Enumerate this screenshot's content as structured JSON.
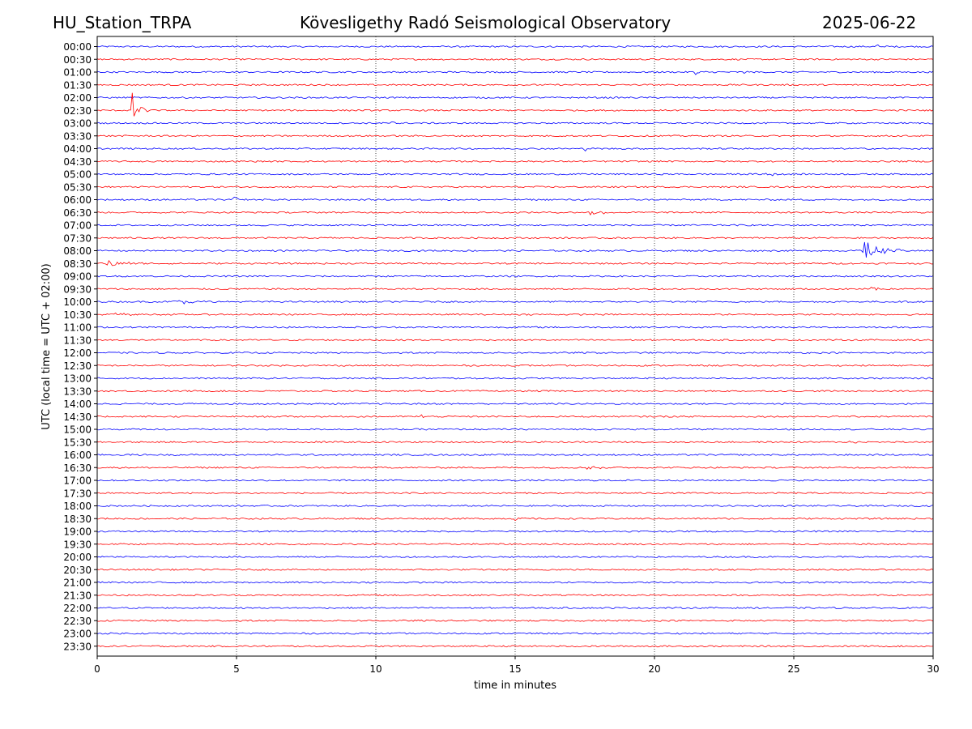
{
  "header": {
    "station": "HU_Station_TRPA",
    "observatory": "Kövesligethy Radó Seismological Observatory",
    "date": "2025-06-22"
  },
  "chart_data": {
    "type": "line",
    "title": "Kövesligethy Radó Seismological Observatory",
    "xlabel": "time in minutes",
    "ylabel": "UTC (local time = UTC + 02:00)",
    "xlim": [
      0,
      30
    ],
    "xticks": [
      0,
      5,
      10,
      15,
      20,
      25,
      30
    ],
    "grid": "vertical dotted lines at x ticks",
    "row_labels": [
      "00:00",
      "00:30",
      "01:00",
      "01:30",
      "02:00",
      "02:30",
      "03:00",
      "03:30",
      "04:00",
      "04:30",
      "05:00",
      "05:30",
      "06:00",
      "06:30",
      "07:00",
      "07:30",
      "08:00",
      "08:30",
      "09:00",
      "09:30",
      "10:00",
      "10:30",
      "11:00",
      "11:30",
      "12:00",
      "12:30",
      "13:00",
      "13:30",
      "14:00",
      "14:30",
      "15:00",
      "15:30",
      "16:00",
      "16:30",
      "17:00",
      "17:30",
      "18:00",
      "18:30",
      "19:00",
      "19:30",
      "20:00",
      "20:30",
      "21:00",
      "21:30",
      "22:00",
      "22:30",
      "23:00",
      "23:30"
    ],
    "trace_colors": [
      "#0000ff",
      "#ff0000"
    ],
    "noise_amplitude": 0.06,
    "events": [
      {
        "row": "00:00",
        "x": 28.0,
        "amplitude": 0.15,
        "duration": 0.4
      },
      {
        "row": "01:00",
        "x": 21.5,
        "amplitude": 0.2,
        "duration": 0.4
      },
      {
        "row": "01:00",
        "x": 23.2,
        "amplitude": 0.15,
        "duration": 0.4
      },
      {
        "row": "02:30",
        "x": 1.25,
        "amplitude": 1.5,
        "duration": 0.6
      },
      {
        "row": "03:00",
        "x": 10.5,
        "amplitude": 0.15,
        "duration": 0.5
      },
      {
        "row": "04:00",
        "x": 17.5,
        "amplitude": 0.15,
        "duration": 0.3
      },
      {
        "row": "05:00",
        "x": 24.0,
        "amplitude": 0.2,
        "duration": 0.8
      },
      {
        "row": "06:00",
        "x": 4.8,
        "amplitude": 0.35,
        "duration": 0.6
      },
      {
        "row": "06:30",
        "x": 17.7,
        "amplitude": 0.3,
        "duration": 0.8
      },
      {
        "row": "08:00",
        "x": 27.5,
        "amplitude": 0.8,
        "duration": 1.5
      },
      {
        "row": "08:30",
        "x": 0.4,
        "amplitude": 0.25,
        "duration": 1.5
      },
      {
        "row": "09:30",
        "x": 27.8,
        "amplitude": 0.2,
        "duration": 0.5
      },
      {
        "row": "10:00",
        "x": 2.8,
        "amplitude": 0.2,
        "duration": 1.5
      },
      {
        "row": "10:30",
        "x": 0.6,
        "amplitude": 0.2,
        "duration": 1.0
      },
      {
        "row": "14:30",
        "x": 11.6,
        "amplitude": 0.2,
        "duration": 0.3
      },
      {
        "row": "15:30",
        "x": 7.9,
        "amplitude": 0.2,
        "duration": 0.4
      },
      {
        "row": "15:30",
        "x": 27.0,
        "amplitude": 0.2,
        "duration": 0.6
      },
      {
        "row": "16:30",
        "x": 17.6,
        "amplitude": 0.35,
        "duration": 0.7
      },
      {
        "row": "18:30",
        "x": 15.0,
        "amplitude": 0.2,
        "duration": 0.2
      }
    ]
  }
}
